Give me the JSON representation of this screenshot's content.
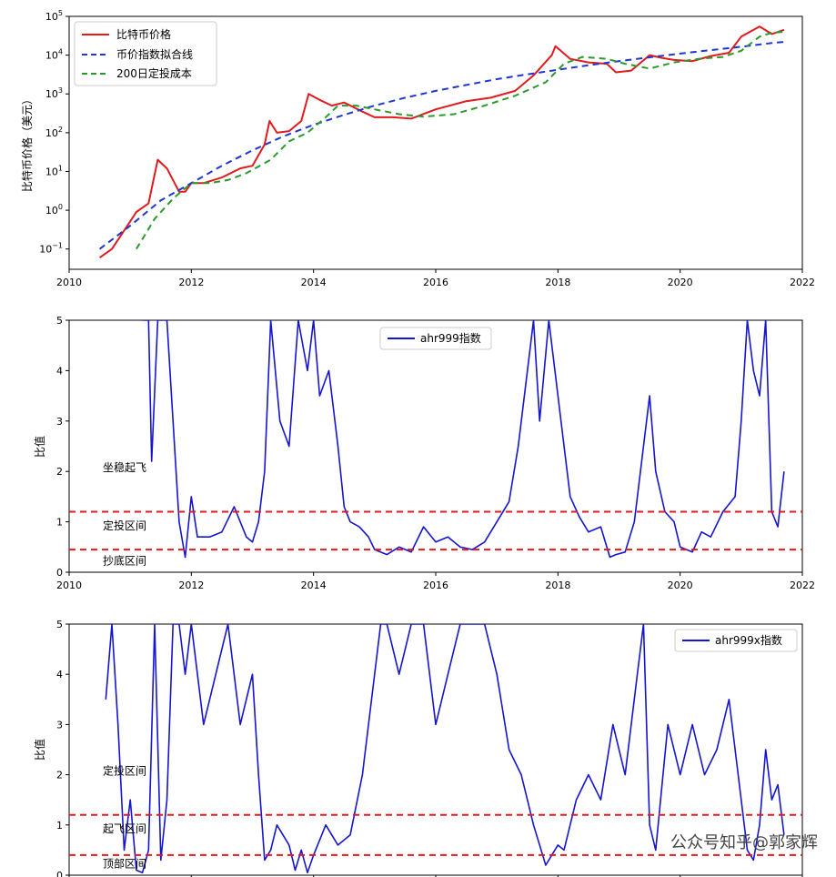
{
  "colors": {
    "price": "#e31a1c",
    "fit": "#1f35d6",
    "dca": "#2a9a2a",
    "index": "#1515d0",
    "threshold": "#e31a1c"
  },
  "watermark": "公众号知乎@郭家辉",
  "chart_data": [
    {
      "type": "line",
      "yscale": "log",
      "ylabel": "比特币价格（美元）",
      "xlim": [
        2010,
        2022
      ],
      "ylim": [
        0.03,
        100000
      ],
      "xticks": [
        "2010",
        "2012",
        "2014",
        "2016",
        "2018",
        "2020",
        "2022"
      ],
      "yticks": [
        "10^-1",
        "10^0",
        "10^1",
        "10^2",
        "10^3",
        "10^4",
        "10^5"
      ],
      "legend_position": "top-left",
      "series": [
        {
          "name": "比特币价格",
          "style": "solid",
          "x": [
            2010.5,
            2010.7,
            2010.9,
            2011.1,
            2011.3,
            2011.45,
            2011.6,
            2011.8,
            2011.9,
            2012.0,
            2012.2,
            2012.5,
            2012.8,
            2013.0,
            2013.2,
            2013.28,
            2013.4,
            2013.6,
            2013.8,
            2013.92,
            2014.1,
            2014.3,
            2014.5,
            2014.8,
            2015.0,
            2015.3,
            2015.6,
            2016.0,
            2016.5,
            2016.9,
            2017.3,
            2017.6,
            2017.9,
            2017.96,
            2018.2,
            2018.5,
            2018.8,
            2018.95,
            2019.2,
            2019.5,
            2019.7,
            2019.9,
            2020.2,
            2020.5,
            2020.8,
            2021.0,
            2021.3,
            2021.5,
            2021.7
          ],
          "y": [
            0.06,
            0.1,
            0.3,
            0.9,
            1.5,
            20,
            12,
            3,
            3,
            5,
            5,
            7,
            12,
            14,
            50,
            200,
            100,
            110,
            200,
            1000,
            700,
            500,
            600,
            350,
            250,
            250,
            230,
            400,
            650,
            800,
            1200,
            3000,
            10000,
            17000,
            8000,
            6500,
            6000,
            3600,
            4000,
            10000,
            8500,
            7500,
            7000,
            9500,
            11500,
            30000,
            55000,
            35000,
            45000
          ]
        },
        {
          "name": "币价指数拟合线",
          "style": "dashed",
          "x": [
            2010.5,
            2011.0,
            2011.5,
            2012.0,
            2012.5,
            2013.0,
            2013.5,
            2014.0,
            2014.5,
            2015.0,
            2015.5,
            2016.0,
            2016.5,
            2017.0,
            2017.5,
            2018.0,
            2018.5,
            2019.0,
            2019.5,
            2020.0,
            2020.5,
            2021.0,
            2021.5,
            2021.7
          ],
          "y": [
            0.1,
            0.4,
            1.8,
            5,
            14,
            35,
            80,
            160,
            290,
            500,
            800,
            1200,
            1700,
            2400,
            3200,
            4200,
            5500,
            7000,
            8800,
            11000,
            13500,
            16500,
            20500,
            22000
          ]
        },
        {
          "name": "200日定投成本",
          "style": "dashed",
          "x": [
            2011.1,
            2011.4,
            2011.7,
            2012.0,
            2012.3,
            2012.6,
            2012.9,
            2013.3,
            2013.6,
            2013.9,
            2014.2,
            2014.4,
            2014.7,
            2015.0,
            2015.4,
            2015.8,
            2016.3,
            2016.8,
            2017.3,
            2017.8,
            2018.1,
            2018.4,
            2018.8,
            2019.1,
            2019.5,
            2019.9,
            2020.3,
            2020.7,
            2021.0,
            2021.3,
            2021.5,
            2021.7
          ],
          "y": [
            0.1,
            0.6,
            2,
            5,
            5,
            6,
            9,
            20,
            60,
            100,
            250,
            500,
            500,
            400,
            300,
            260,
            300,
            500,
            900,
            2000,
            6000,
            9000,
            8000,
            6000,
            4500,
            6500,
            8000,
            9000,
            13000,
            30000,
            38000,
            40000
          ]
        }
      ]
    },
    {
      "type": "line",
      "ylabel": "比值",
      "xlim": [
        2010,
        2022
      ],
      "ylim": [
        0,
        5
      ],
      "xticks": [
        "2010",
        "2012",
        "2014",
        "2016",
        "2018",
        "2020",
        "2022"
      ],
      "yticks": [
        "0",
        "1",
        "2",
        "3",
        "4",
        "5"
      ],
      "legend_position": "top-center",
      "thresholds": [
        1.2,
        0.45
      ],
      "annotations": [
        {
          "text": "坐稳起飞",
          "x": 2010.55,
          "y": 2.0
        },
        {
          "text": "定投区间",
          "x": 2010.55,
          "y": 0.85
        },
        {
          "text": "抄底区间",
          "x": 2010.55,
          "y": 0.15
        }
      ],
      "series": [
        {
          "name": "ahr999指数",
          "x": [
            2011.2,
            2011.3,
            2011.35,
            2011.45,
            2011.55,
            2011.6,
            2011.7,
            2011.8,
            2011.9,
            2012.0,
            2012.1,
            2012.3,
            2012.5,
            2012.7,
            2012.9,
            2013.0,
            2013.1,
            2013.2,
            2013.3,
            2013.45,
            2013.6,
            2013.75,
            2013.9,
            2014.0,
            2014.1,
            2014.25,
            2014.4,
            2014.5,
            2014.6,
            2014.75,
            2014.9,
            2015.0,
            2015.2,
            2015.4,
            2015.6,
            2015.8,
            2016.0,
            2016.2,
            2016.4,
            2016.6,
            2016.8,
            2017.0,
            2017.2,
            2017.35,
            2017.5,
            2017.6,
            2017.7,
            2017.85,
            2017.95,
            2018.05,
            2018.2,
            2018.35,
            2018.5,
            2018.7,
            2018.85,
            2018.95,
            2019.1,
            2019.25,
            2019.4,
            2019.5,
            2019.6,
            2019.75,
            2019.9,
            2020.0,
            2020.2,
            2020.35,
            2020.5,
            2020.7,
            2020.9,
            2021.0,
            2021.1,
            2021.2,
            2021.3,
            2021.4,
            2021.5,
            2021.6,
            2021.7
          ],
          "y": [
            5,
            5,
            2.2,
            5,
            5,
            5,
            3,
            1.0,
            0.3,
            1.5,
            0.7,
            0.7,
            0.8,
            1.3,
            0.7,
            0.6,
            1.0,
            2,
            5,
            3,
            2.5,
            5,
            4,
            5,
            3.5,
            4,
            2.5,
            1.3,
            1.0,
            0.9,
            0.7,
            0.45,
            0.35,
            0.5,
            0.4,
            0.9,
            0.6,
            0.7,
            0.5,
            0.45,
            0.6,
            1.0,
            1.4,
            2.5,
            4,
            5,
            3,
            5,
            4,
            3,
            1.5,
            1.1,
            0.8,
            0.9,
            0.3,
            0.35,
            0.4,
            1.0,
            2.5,
            3.5,
            2,
            1.2,
            1.0,
            0.5,
            0.4,
            0.8,
            0.7,
            1.2,
            1.5,
            3,
            5,
            4,
            3.5,
            5,
            1.2,
            0.9,
            2.0
          ]
        }
      ]
    },
    {
      "type": "line",
      "ylabel": "比值",
      "xlim": [
        2010,
        2022
      ],
      "ylim": [
        0,
        5
      ],
      "yticks": [
        "0",
        "1",
        "2",
        "3",
        "4",
        "5"
      ],
      "legend_position": "top-right",
      "thresholds": [
        1.2,
        0.4
      ],
      "annotations": [
        {
          "text": "定投区间",
          "x": 2010.55,
          "y": 2.0
        },
        {
          "text": "起飞区间",
          "x": 2010.55,
          "y": 0.85
        },
        {
          "text": "顶部区间",
          "x": 2010.55,
          "y": 0.15
        }
      ],
      "series": [
        {
          "name": "ahr999x指数",
          "x": [
            2010.6,
            2010.7,
            2010.8,
            2010.9,
            2011.0,
            2011.1,
            2011.2,
            2011.3,
            2011.4,
            2011.5,
            2011.6,
            2011.7,
            2011.8,
            2011.9,
            2012.0,
            2012.2,
            2012.4,
            2012.6,
            2012.8,
            2013.0,
            2013.1,
            2013.2,
            2013.3,
            2013.4,
            2013.5,
            2013.6,
            2013.7,
            2013.8,
            2013.9,
            2014.0,
            2014.2,
            2014.4,
            2014.6,
            2014.8,
            2015.0,
            2015.1,
            2015.2,
            2015.4,
            2015.6,
            2015.8,
            2016.0,
            2016.2,
            2016.4,
            2016.6,
            2016.8,
            2017.0,
            2017.2,
            2017.4,
            2017.6,
            2017.8,
            2017.9,
            2018.0,
            2018.1,
            2018.3,
            2018.5,
            2018.7,
            2018.9,
            2019.1,
            2019.3,
            2019.4,
            2019.5,
            2019.6,
            2019.8,
            2020.0,
            2020.2,
            2020.4,
            2020.6,
            2020.8,
            2021.0,
            2021.1,
            2021.2,
            2021.3,
            2021.4,
            2021.5,
            2021.6,
            2021.7
          ],
          "y": [
            3.5,
            5,
            3,
            0.5,
            1.5,
            0.1,
            0.05,
            0.5,
            5,
            0.3,
            1.5,
            5,
            5,
            4,
            5,
            3,
            4,
            5,
            3,
            4,
            2,
            0.3,
            0.5,
            1,
            0.8,
            0.6,
            0.1,
            0.5,
            0.05,
            0.4,
            1,
            0.6,
            0.8,
            2,
            4,
            5,
            5,
            4,
            5,
            5,
            3,
            4,
            5,
            5,
            5,
            4,
            2.5,
            2,
            1,
            0.2,
            0.4,
            0.6,
            0.5,
            1.5,
            2,
            1.5,
            3,
            2,
            4,
            5,
            1,
            0.5,
            3,
            2,
            3,
            2,
            2.5,
            3.5,
            1.5,
            0.5,
            0.3,
            1.0,
            2.5,
            1.5,
            1.8,
            0.8
          ]
        }
      ]
    }
  ]
}
